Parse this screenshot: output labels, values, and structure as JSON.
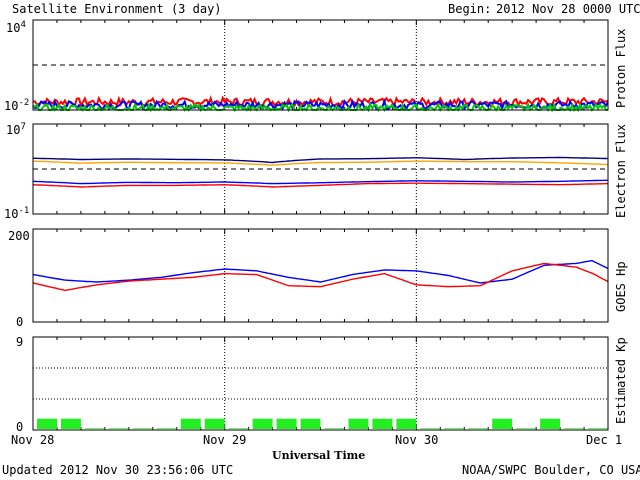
{
  "header": {
    "title": "Satellite Environment (3 day)",
    "begin_label": "Begin:",
    "begin_value": "2012 Nov 28 0000 UTC"
  },
  "footer": {
    "updated": "Updated 2012 Nov 30 23:56:06 UTC",
    "source": "NOAA/SWPC Boulder, CO USA"
  },
  "x_axis": {
    "label": "Universal Time",
    "ticks": [
      "Nov 28",
      "Nov 29",
      "Nov 30",
      "Dec 1"
    ]
  },
  "chart_data": [
    {
      "type": "line",
      "ylabel": "Proton Flux",
      "scale": "log",
      "ytick_labels": {
        "top": "10",
        "top_exp": "4",
        "bottom": "10",
        "bottom_exp": "-2"
      },
      "ylim": [
        0.01,
        10000
      ],
      "threshold": 10,
      "x": [
        0,
        12,
        24,
        36,
        48,
        60,
        72
      ],
      "series": [
        {
          "color": "#ff0000",
          "values": [
            0.035,
            0.034,
            0.036,
            0.035,
            0.034,
            0.035,
            0.036
          ]
        },
        {
          "color": "#0000ff",
          "values": [
            0.022,
            0.021,
            0.022,
            0.022,
            0.021,
            0.022,
            0.022
          ]
        },
        {
          "color": "#00cc00",
          "values": [
            0.013,
            0.013,
            0.013,
            0.013,
            0.013,
            0.013,
            0.013
          ]
        }
      ]
    },
    {
      "type": "line",
      "ylabel": "Electron Flux",
      "scale": "log",
      "ytick_labels": {
        "top": "10",
        "top_exp": "7",
        "bottom": "10",
        "bottom_exp": "-1"
      },
      "ylim": [
        0.1,
        10000000
      ],
      "threshold": 1000,
      "x": [
        0,
        6,
        12,
        18,
        24,
        30,
        36,
        42,
        48,
        54,
        60,
        66,
        72
      ],
      "series": [
        {
          "color": "#000080",
          "values": [
            9000,
            7000,
            7800,
            7200,
            6500,
            3800,
            7800,
            8200,
            10000,
            7000,
            9500,
            10500,
            8500
          ]
        },
        {
          "color": "#ffa500",
          "values": [
            5000,
            3300,
            4000,
            3600,
            3500,
            2200,
            3800,
            4000,
            5000,
            4500,
            4500,
            3500,
            2500
          ]
        },
        {
          "color": "#0000ff",
          "values": [
            80,
            50,
            65,
            60,
            70,
            50,
            60,
            75,
            90,
            80,
            70,
            80,
            100
          ]
        },
        {
          "color": "#ff0000",
          "values": [
            40,
            25,
            35,
            35,
            40,
            25,
            35,
            50,
            55,
            50,
            45,
            40,
            50
          ]
        }
      ]
    },
    {
      "type": "line",
      "ylabel": "GOES Hp",
      "scale": "linear",
      "ytick_labels": {
        "top": "200",
        "bottom": "0"
      },
      "ylim": [
        0,
        200
      ],
      "x": [
        0,
        4,
        8,
        12,
        16,
        20,
        24,
        28,
        32,
        36,
        40,
        44,
        48,
        52,
        56,
        60,
        64,
        68,
        70,
        72
      ],
      "series": [
        {
          "color": "#0000ff",
          "values": [
            102,
            90,
            86,
            90,
            96,
            106,
            114,
            110,
            96,
            86,
            102,
            112,
            110,
            100,
            84,
            92,
            122,
            126,
            132,
            115
          ]
        },
        {
          "color": "#ff0000",
          "values": [
            84,
            68,
            80,
            88,
            92,
            96,
            104,
            102,
            78,
            76,
            92,
            104,
            80,
            76,
            78,
            110,
            126,
            118,
            105,
            87
          ]
        }
      ]
    },
    {
      "type": "bar",
      "ylabel": "Estimated Kp",
      "ytick_labels": {
        "top": "9",
        "bottom": "0"
      },
      "ylim": [
        0,
        9
      ],
      "threshold_levels": [
        3,
        6,
        9
      ],
      "bar_color": "#22ee22",
      "x": [
        "00-03",
        "03-06",
        "06-09",
        "09-12",
        "12-15",
        "15-18",
        "18-21",
        "21-24",
        "00-03",
        "03-06",
        "06-09",
        "09-12",
        "12-15",
        "15-18",
        "18-21",
        "21-24",
        "00-03",
        "03-06",
        "06-09",
        "09-12",
        "12-15",
        "15-18",
        "18-21",
        "21-24"
      ],
      "values": [
        1,
        1,
        0,
        0,
        0,
        0,
        1,
        1,
        0,
        1,
        1,
        1,
        0,
        1,
        1,
        1,
        0,
        0,
        0,
        1,
        0,
        1,
        0,
        0
      ]
    }
  ]
}
